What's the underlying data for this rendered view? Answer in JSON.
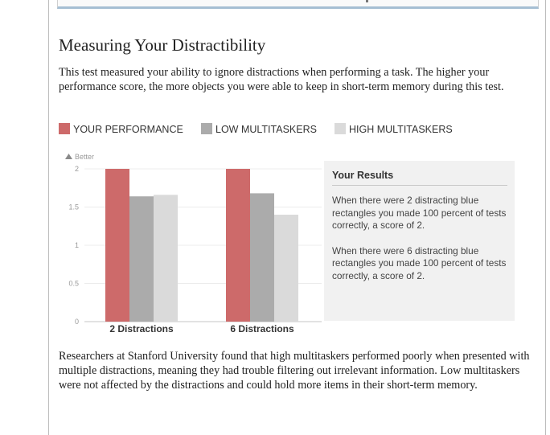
{
  "page": {
    "title": "Measuring Your Distractibility",
    "intro": "This test measured your ability to ignore distractions when performing a task. The higher your performance score, the more objects you were able to keep in short-term memory during this test.",
    "outro": "Researchers at Stanford University found that high multitaskers performed poorly when presented with multiple distractions, meaning they had trouble filtering out irrelevant information. Low multitaskers were not affected by the distractions and could hold more items in their short-term memory."
  },
  "legend": [
    {
      "label": "YOUR PERFORMANCE",
      "color": "#cd6a6a"
    },
    {
      "label": "LOW MULTITASKERS",
      "color": "#ababab"
    },
    {
      "label": "HIGH MULTITASKERS",
      "color": "#dadada"
    }
  ],
  "results": {
    "title": "Your Results",
    "lines": [
      "When there were 2 distracting blue rectangles you made 100 percent of tests correctly, a score of 2.",
      "When there were 6 distracting blue rectangles you made 100 percent of tests correctly, a score of 2."
    ]
  },
  "chart_data": {
    "type": "bar",
    "indicator": "Better",
    "categories": [
      "2 Distractions",
      "6 Distractions"
    ],
    "series": [
      {
        "name": "YOUR PERFORMANCE",
        "values": [
          2.0,
          2.0
        ],
        "color": "#cd6a6a"
      },
      {
        "name": "LOW MULTITASKERS",
        "values": [
          1.64,
          1.68
        ],
        "color": "#ababab"
      },
      {
        "name": "HIGH MULTITASKERS",
        "values": [
          1.66,
          1.4
        ],
        "color": "#dadada"
      }
    ],
    "yticks": [
      "0",
      "0.5",
      "1",
      "1.5",
      "2"
    ],
    "ylim": [
      0,
      2
    ],
    "grid": true
  }
}
